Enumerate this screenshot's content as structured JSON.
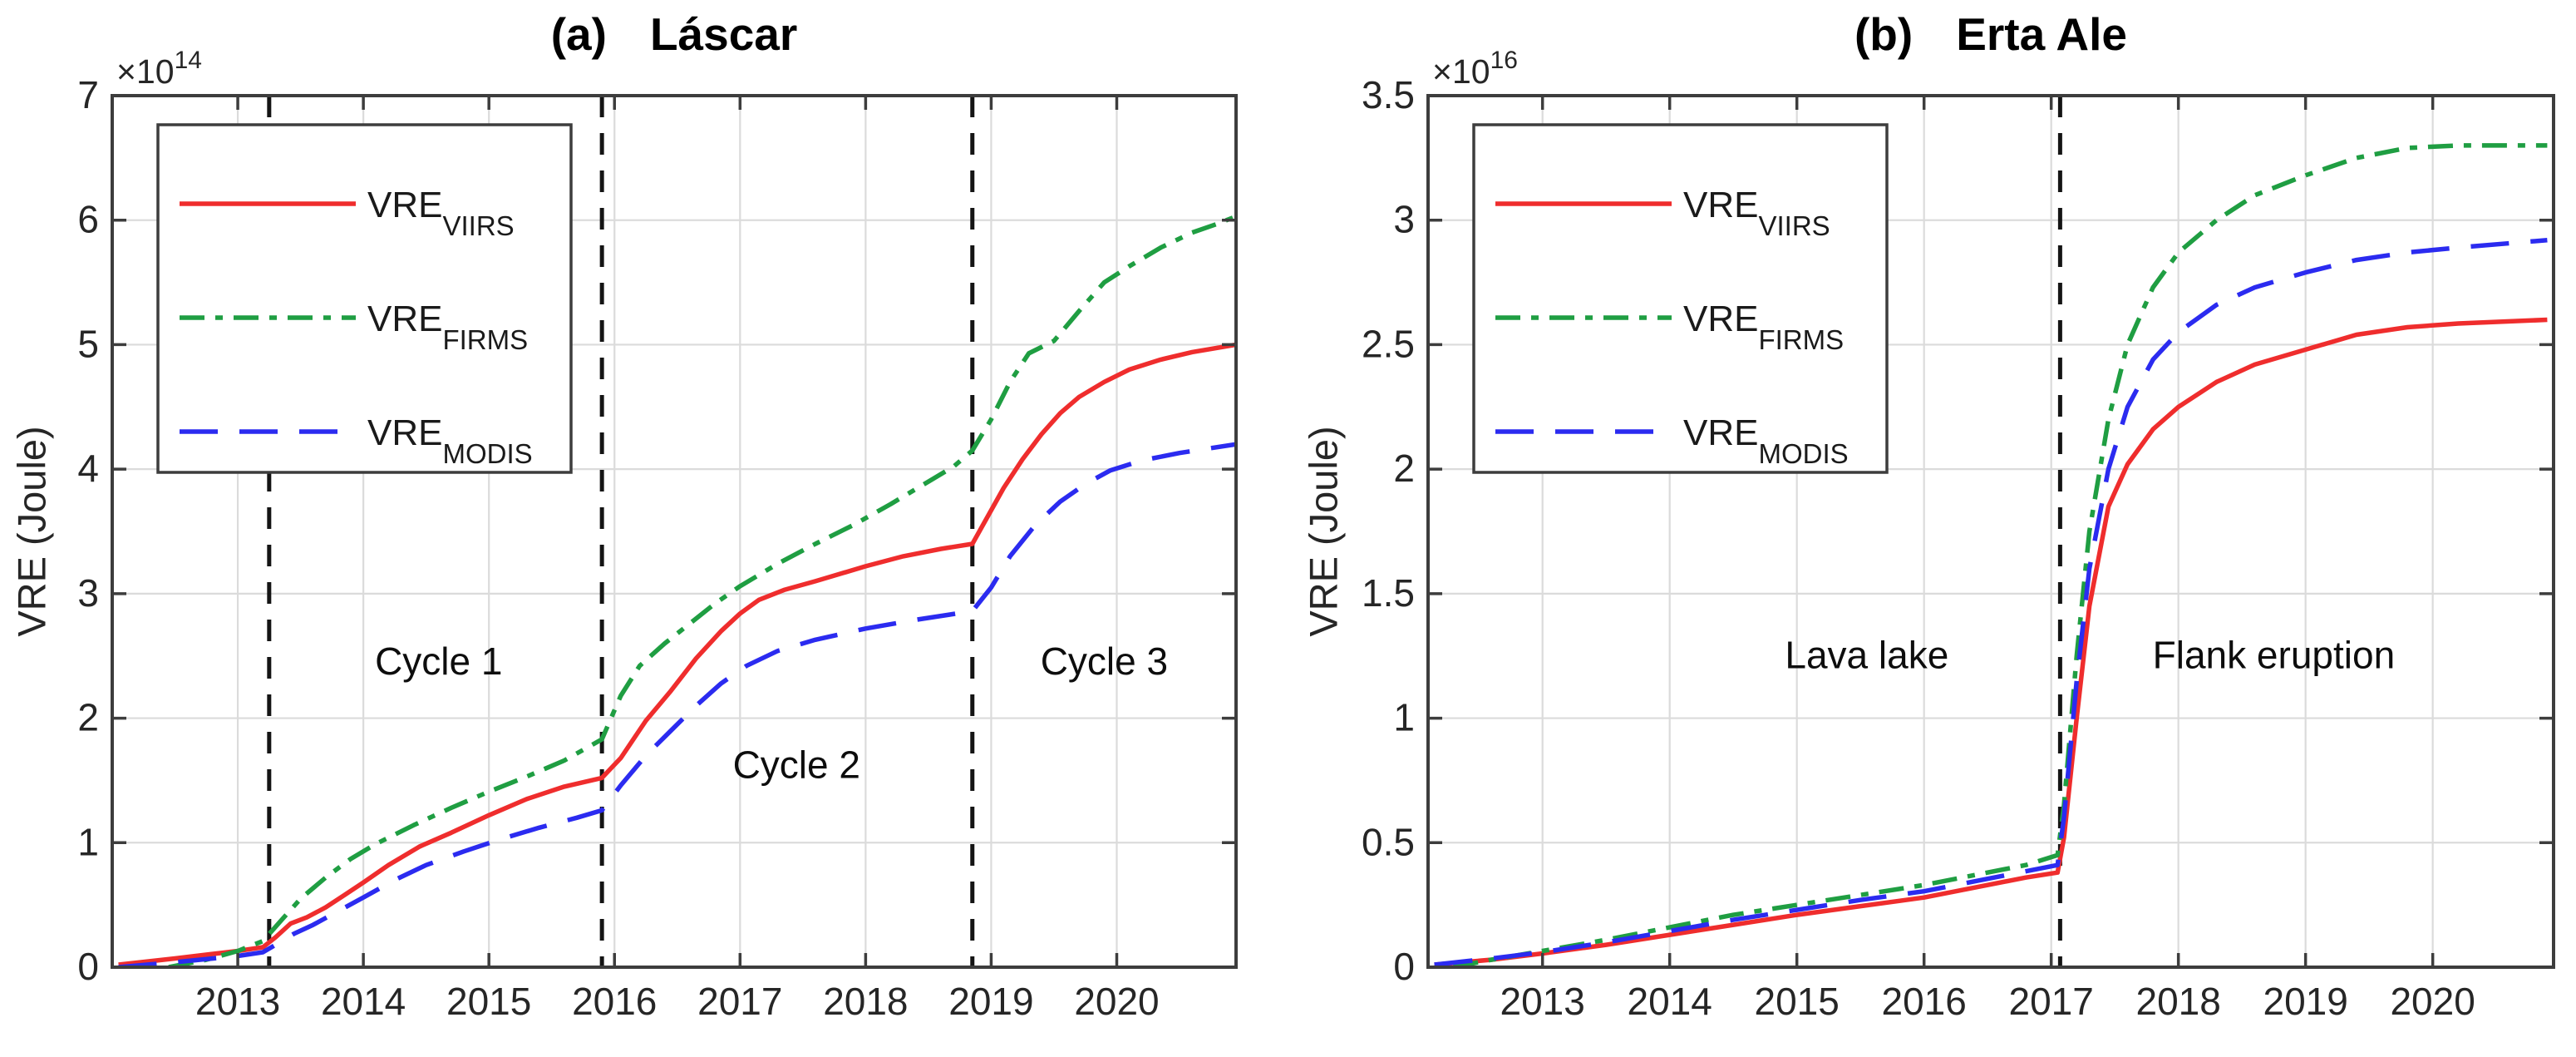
{
  "figure": {
    "background": "#ffffff",
    "axis_color": "#3d3d3d",
    "grid_color": "#dbdbdb",
    "vline_color": "#141414",
    "legend": {
      "position": "top-left",
      "items": [
        {
          "label_main": "VRE",
          "label_sub": "VIIRS",
          "series": "VRE_VIIRS",
          "color": "#ef2d2d",
          "style": "solid"
        },
        {
          "label_main": "VRE",
          "label_sub": "FIRMS",
          "series": "VRE_FIRMS",
          "color": "#1f9e42",
          "style": "dashdot"
        },
        {
          "label_main": "VRE",
          "label_sub": "MODIS",
          "series": "VRE_MODIS",
          "color": "#2b2bf0",
          "style": "dashed"
        }
      ]
    }
  },
  "chart_data": [
    {
      "type": "line",
      "panel_label": "a",
      "title_prefix": "(a)",
      "title": "Láscar",
      "ylabel": "VRE (Joule)",
      "y_scale_base": "×10",
      "y_scale_exp": "14",
      "xlim": [
        2012.0,
        2020.95
      ],
      "ylim": [
        0,
        7
      ],
      "grid": true,
      "xticks": [
        2013,
        2014,
        2015,
        2016,
        2017,
        2018,
        2019,
        2020
      ],
      "xtick_labels": [
        "2013",
        "2014",
        "2015",
        "2016",
        "2017",
        "2018",
        "2019",
        "2020"
      ],
      "yticks": [
        0,
        1,
        2,
        3,
        4,
        5,
        6,
        7
      ],
      "ytick_labels": [
        "0",
        "1",
        "2",
        "3",
        "4",
        "5",
        "6",
        "7"
      ],
      "vlines": [
        2013.25,
        2015.9,
        2018.85
      ],
      "annotations": [
        {
          "text": "Cycle 1",
          "x": 2014.6,
          "y": 2.45
        },
        {
          "text": "Cycle 2",
          "x": 2017.45,
          "y": 1.62
        },
        {
          "text": "Cycle 3",
          "x": 2019.9,
          "y": 2.45
        }
      ],
      "series": [
        {
          "name": "VRE_VIIRS",
          "color": "#ef2d2d",
          "style": "solid",
          "points": [
            [
              2012.05,
              0.02
            ],
            [
              2012.5,
              0.07
            ],
            [
              2013.0,
              0.13
            ],
            [
              2013.2,
              0.16
            ],
            [
              2013.3,
              0.24
            ],
            [
              2013.42,
              0.35
            ],
            [
              2013.55,
              0.4
            ],
            [
              2013.7,
              0.48
            ],
            [
              2013.85,
              0.58
            ],
            [
              2014.0,
              0.68
            ],
            [
              2014.2,
              0.82
            ],
            [
              2014.45,
              0.97
            ],
            [
              2014.7,
              1.08
            ],
            [
              2015.0,
              1.22
            ],
            [
              2015.3,
              1.35
            ],
            [
              2015.6,
              1.45
            ],
            [
              2015.9,
              1.52
            ],
            [
              2016.05,
              1.68
            ],
            [
              2016.25,
              1.98
            ],
            [
              2016.45,
              2.22
            ],
            [
              2016.65,
              2.48
            ],
            [
              2016.85,
              2.7
            ],
            [
              2017.0,
              2.84
            ],
            [
              2017.15,
              2.95
            ],
            [
              2017.35,
              3.03
            ],
            [
              2017.6,
              3.1
            ],
            [
              2018.0,
              3.22
            ],
            [
              2018.3,
              3.3
            ],
            [
              2018.6,
              3.36
            ],
            [
              2018.85,
              3.4
            ],
            [
              2018.95,
              3.58
            ],
            [
              2019.1,
              3.85
            ],
            [
              2019.25,
              4.08
            ],
            [
              2019.4,
              4.28
            ],
            [
              2019.55,
              4.45
            ],
            [
              2019.7,
              4.58
            ],
            [
              2019.9,
              4.7
            ],
            [
              2020.1,
              4.8
            ],
            [
              2020.35,
              4.88
            ],
            [
              2020.6,
              4.94
            ],
            [
              2020.95,
              5.0
            ]
          ]
        },
        {
          "name": "VRE_FIRMS",
          "color": "#1f9e42",
          "style": "dashdot",
          "points": [
            [
              2012.45,
              0.0
            ],
            [
              2012.75,
              0.06
            ],
            [
              2013.0,
              0.13
            ],
            [
              2013.2,
              0.21
            ],
            [
              2013.35,
              0.38
            ],
            [
              2013.5,
              0.55
            ],
            [
              2013.7,
              0.72
            ],
            [
              2013.9,
              0.87
            ],
            [
              2014.1,
              0.99
            ],
            [
              2014.4,
              1.14
            ],
            [
              2014.7,
              1.28
            ],
            [
              2015.0,
              1.41
            ],
            [
              2015.3,
              1.53
            ],
            [
              2015.6,
              1.66
            ],
            [
              2015.9,
              1.83
            ],
            [
              2016.05,
              2.18
            ],
            [
              2016.2,
              2.42
            ],
            [
              2016.4,
              2.6
            ],
            [
              2016.6,
              2.76
            ],
            [
              2016.8,
              2.92
            ],
            [
              2017.0,
              3.06
            ],
            [
              2017.3,
              3.24
            ],
            [
              2017.6,
              3.4
            ],
            [
              2017.9,
              3.55
            ],
            [
              2018.2,
              3.72
            ],
            [
              2018.5,
              3.9
            ],
            [
              2018.7,
              4.02
            ],
            [
              2018.85,
              4.15
            ],
            [
              2019.0,
              4.4
            ],
            [
              2019.15,
              4.7
            ],
            [
              2019.3,
              4.93
            ],
            [
              2019.5,
              5.03
            ],
            [
              2019.7,
              5.27
            ],
            [
              2019.9,
              5.5
            ],
            [
              2020.1,
              5.63
            ],
            [
              2020.35,
              5.78
            ],
            [
              2020.6,
              5.9
            ],
            [
              2020.8,
              5.97
            ],
            [
              2020.95,
              6.03
            ]
          ]
        },
        {
          "name": "VRE_MODIS",
          "color": "#2b2bf0",
          "style": "dashed",
          "points": [
            [
              2012.05,
              0.0
            ],
            [
              2012.5,
              0.04
            ],
            [
              2013.0,
              0.09
            ],
            [
              2013.2,
              0.12
            ],
            [
              2013.3,
              0.18
            ],
            [
              2013.45,
              0.27
            ],
            [
              2013.6,
              0.34
            ],
            [
              2013.8,
              0.45
            ],
            [
              2014.0,
              0.56
            ],
            [
              2014.25,
              0.7
            ],
            [
              2014.5,
              0.82
            ],
            [
              2014.8,
              0.93
            ],
            [
              2015.1,
              1.03
            ],
            [
              2015.4,
              1.12
            ],
            [
              2015.7,
              1.2
            ],
            [
              2015.9,
              1.26
            ],
            [
              2016.05,
              1.46
            ],
            [
              2016.25,
              1.7
            ],
            [
              2016.45,
              1.9
            ],
            [
              2016.65,
              2.1
            ],
            [
              2016.85,
              2.28
            ],
            [
              2017.05,
              2.42
            ],
            [
              2017.3,
              2.54
            ],
            [
              2017.6,
              2.63
            ],
            [
              2018.0,
              2.72
            ],
            [
              2018.4,
              2.79
            ],
            [
              2018.85,
              2.86
            ],
            [
              2019.0,
              3.05
            ],
            [
              2019.15,
              3.3
            ],
            [
              2019.35,
              3.55
            ],
            [
              2019.55,
              3.74
            ],
            [
              2019.75,
              3.88
            ],
            [
              2019.95,
              3.99
            ],
            [
              2020.2,
              4.07
            ],
            [
              2020.5,
              4.13
            ],
            [
              2020.95,
              4.2
            ]
          ]
        }
      ]
    },
    {
      "type": "line",
      "panel_label": "b",
      "title_prefix": "(b)",
      "title": "Erta Ale",
      "ylabel": "VRE (Joule)",
      "y_scale_base": "×10",
      "y_scale_exp": "16",
      "xlim": [
        2012.1,
        2020.95
      ],
      "ylim": [
        0,
        3.5
      ],
      "grid": true,
      "xticks": [
        2013,
        2014,
        2015,
        2016,
        2017,
        2018,
        2019,
        2020
      ],
      "xtick_labels": [
        "2013",
        "2014",
        "2015",
        "2016",
        "2017",
        "2018",
        "2019",
        "2020"
      ],
      "yticks": [
        0,
        0.5,
        1,
        1.5,
        2,
        2.5,
        3,
        3.5
      ],
      "ytick_labels": [
        "0",
        "0.5",
        "1",
        "1.5",
        "2",
        "2.5",
        "3",
        "3.5"
      ],
      "vlines": [
        2017.07
      ],
      "annotations": [
        {
          "text": "Lava lake",
          "x": 2015.55,
          "y": 1.25
        },
        {
          "text": "Flank eruption",
          "x": 2018.75,
          "y": 1.25
        }
      ],
      "series": [
        {
          "name": "VRE_VIIRS",
          "color": "#ef2d2d",
          "style": "solid",
          "points": [
            [
              2012.15,
              0.01
            ],
            [
              2012.6,
              0.03
            ],
            [
              2013.0,
              0.055
            ],
            [
              2013.5,
              0.09
            ],
            [
              2014.0,
              0.13
            ],
            [
              2014.5,
              0.17
            ],
            [
              2015.0,
              0.21
            ],
            [
              2015.5,
              0.245
            ],
            [
              2016.0,
              0.28
            ],
            [
              2016.4,
              0.32
            ],
            [
              2016.8,
              0.36
            ],
            [
              2017.05,
              0.38
            ],
            [
              2017.1,
              0.52
            ],
            [
              2017.2,
              1.0
            ],
            [
              2017.3,
              1.45
            ],
            [
              2017.45,
              1.85
            ],
            [
              2017.6,
              2.02
            ],
            [
              2017.8,
              2.16
            ],
            [
              2018.0,
              2.25
            ],
            [
              2018.3,
              2.35
            ],
            [
              2018.6,
              2.42
            ],
            [
              2019.0,
              2.48
            ],
            [
              2019.4,
              2.54
            ],
            [
              2019.8,
              2.57
            ],
            [
              2020.2,
              2.585
            ],
            [
              2020.9,
              2.6
            ]
          ]
        },
        {
          "name": "VRE_FIRMS",
          "color": "#1f9e42",
          "style": "dashdot",
          "points": [
            [
              2012.3,
              0.0
            ],
            [
              2012.6,
              0.03
            ],
            [
              2013.0,
              0.065
            ],
            [
              2013.5,
              0.11
            ],
            [
              2014.0,
              0.16
            ],
            [
              2014.5,
              0.21
            ],
            [
              2015.0,
              0.25
            ],
            [
              2015.5,
              0.29
            ],
            [
              2016.0,
              0.33
            ],
            [
              2016.4,
              0.37
            ],
            [
              2016.8,
              0.41
            ],
            [
              2017.05,
              0.45
            ],
            [
              2017.1,
              0.65
            ],
            [
              2017.2,
              1.25
            ],
            [
              2017.3,
              1.75
            ],
            [
              2017.45,
              2.2
            ],
            [
              2017.6,
              2.5
            ],
            [
              2017.8,
              2.73
            ],
            [
              2018.0,
              2.87
            ],
            [
              2018.3,
              3.0
            ],
            [
              2018.6,
              3.1
            ],
            [
              2019.0,
              3.18
            ],
            [
              2019.4,
              3.25
            ],
            [
              2019.8,
              3.29
            ],
            [
              2020.2,
              3.3
            ],
            [
              2020.9,
              3.3
            ]
          ]
        },
        {
          "name": "VRE_MODIS",
          "color": "#2b2bf0",
          "style": "dashed",
          "points": [
            [
              2012.15,
              0.01
            ],
            [
              2012.6,
              0.035
            ],
            [
              2013.0,
              0.06
            ],
            [
              2013.5,
              0.1
            ],
            [
              2014.0,
              0.145
            ],
            [
              2014.5,
              0.19
            ],
            [
              2015.0,
              0.23
            ],
            [
              2015.5,
              0.27
            ],
            [
              2016.0,
              0.305
            ],
            [
              2016.4,
              0.345
            ],
            [
              2016.8,
              0.385
            ],
            [
              2017.05,
              0.41
            ],
            [
              2017.1,
              0.6
            ],
            [
              2017.2,
              1.15
            ],
            [
              2017.3,
              1.6
            ],
            [
              2017.45,
              2.0
            ],
            [
              2017.6,
              2.25
            ],
            [
              2017.8,
              2.44
            ],
            [
              2018.0,
              2.55
            ],
            [
              2018.3,
              2.66
            ],
            [
              2018.6,
              2.73
            ],
            [
              2019.0,
              2.79
            ],
            [
              2019.4,
              2.84
            ],
            [
              2019.8,
              2.87
            ],
            [
              2020.2,
              2.89
            ],
            [
              2020.9,
              2.92
            ]
          ]
        }
      ]
    }
  ]
}
